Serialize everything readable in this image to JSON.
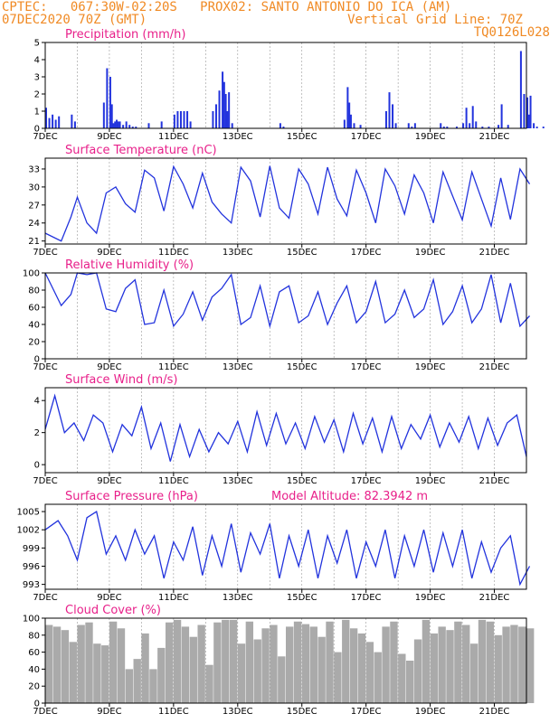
{
  "header": {
    "line1": "CPTEC:   067:30W-02:20S   PROX02: SANTO ANTONIO DO ICA (AM)",
    "line2_left": "07DEC2020 70Z (GMT)",
    "line2_right": "Vertical Grid Line: 70Z",
    "line3_right": "TQ0126L028"
  },
  "x_ticks": [
    "7DEC",
    "9DEC",
    "11DEC",
    "13DEC",
    "15DEC",
    "17DEC",
    "19DEC",
    "21DEC"
  ],
  "colors": {
    "line": "#2233dd",
    "bar": "#2233dd",
    "cloud": "#aaaaaa",
    "title": "#e8208a",
    "header": "#f08a24"
  },
  "chart_data": [
    {
      "type": "bar",
      "title": "Precipitation (mm/h)",
      "ylim": [
        0,
        5
      ],
      "yticks": [
        0,
        1,
        2,
        3,
        4,
        5
      ],
      "x_days": [
        0.0,
        0.1,
        0.2,
        0.3,
        0.4,
        0.8,
        0.9,
        1.8,
        1.9,
        2.0,
        2.05,
        2.1,
        2.15,
        2.2,
        2.25,
        2.3,
        2.4,
        2.5,
        2.6,
        2.7,
        2.8,
        3.2,
        3.6,
        4.0,
        4.1,
        4.2,
        4.3,
        4.4,
        4.5,
        5.2,
        5.3,
        5.4,
        5.5,
        5.55,
        5.6,
        5.65,
        5.7,
        5.8,
        7.3,
        7.4,
        9.3,
        9.4,
        9.45,
        9.5,
        9.6,
        9.8,
        10.6,
        10.7,
        10.8,
        10.9,
        11.3,
        11.4,
        11.5,
        12.3,
        12.4,
        12.5,
        12.8,
        13.0,
        13.1,
        13.2,
        13.3,
        13.4,
        13.6,
        13.8,
        14.1,
        14.2,
        14.4,
        14.8,
        14.9,
        15.0,
        15.05,
        15.1,
        15.2,
        15.3,
        15.5
      ],
      "values": [
        1.2,
        0.6,
        0.8,
        0.5,
        0.7,
        0.8,
        0.4,
        1.5,
        3.5,
        3.0,
        1.4,
        0.3,
        0.4,
        0.5,
        0.4,
        0.4,
        0.2,
        0.4,
        0.2,
        0.1,
        0.1,
        0.3,
        0.4,
        0.8,
        1.0,
        1.0,
        1.0,
        1.0,
        0.4,
        1.0,
        1.4,
        2.2,
        3.3,
        2.7,
        2.0,
        1.0,
        2.1,
        0.3,
        0.3,
        0.1,
        0.5,
        2.4,
        1.5,
        0.8,
        0.3,
        0.2,
        1.0,
        2.1,
        1.4,
        0.3,
        0.3,
        0.1,
        0.3,
        0.3,
        0.1,
        0.1,
        0.1,
        0.3,
        1.2,
        0.3,
        1.3,
        0.4,
        0.1,
        0.1,
        0.2,
        1.4,
        0.2,
        4.5,
        2.0,
        1.8,
        0.8,
        1.9,
        0.3,
        0.1,
        0.1
      ]
    },
    {
      "type": "line",
      "title": "Surface Temperature (nC)",
      "ylim": [
        20.5,
        34.8
      ],
      "yticks": [
        21,
        24,
        27,
        30,
        33
      ],
      "x_days": [
        0,
        0.5,
        0.8,
        1.0,
        1.3,
        1.6,
        1.9,
        2.2,
        2.5,
        2.8,
        3.1,
        3.4,
        3.7,
        4.0,
        4.3,
        4.6,
        4.9,
        5.2,
        5.5,
        5.8,
        6.1,
        6.4,
        6.7,
        7.0,
        7.3,
        7.6,
        7.9,
        8.2,
        8.5,
        8.8,
        9.1,
        9.4,
        9.7,
        10.0,
        10.3,
        10.6,
        10.9,
        11.2,
        11.5,
        11.8,
        12.1,
        12.4,
        12.7,
        13.0,
        13.3,
        13.6,
        13.9,
        14.2,
        14.5,
        14.8,
        15.1
      ],
      "values": [
        22.3,
        21.0,
        25.0,
        28.3,
        24.0,
        22.3,
        29.0,
        30.0,
        27.2,
        25.8,
        32.8,
        31.5,
        26.0,
        33.4,
        30.5,
        26.5,
        32.3,
        27.5,
        25.5,
        24.0,
        33.3,
        31.0,
        25.0,
        33.5,
        26.5,
        24.8,
        33.0,
        30.5,
        25.5,
        33.3,
        28.0,
        25.2,
        32.8,
        29.0,
        24.0,
        33.0,
        30.2,
        25.5,
        32.0,
        29.0,
        24.0,
        32.5,
        28.5,
        24.5,
        32.5,
        28.0,
        23.5,
        31.5,
        24.6,
        33.0,
        30.5
      ]
    },
    {
      "type": "line",
      "title": "Relative Humidity (%)",
      "ylim": [
        0,
        100
      ],
      "yticks": [
        0,
        20,
        40,
        60,
        80,
        100
      ],
      "x_days": [
        0,
        0.5,
        0.8,
        1.0,
        1.3,
        1.6,
        1.9,
        2.2,
        2.5,
        2.8,
        3.1,
        3.4,
        3.7,
        4.0,
        4.3,
        4.6,
        4.9,
        5.2,
        5.5,
        5.8,
        6.1,
        6.4,
        6.7,
        7.0,
        7.3,
        7.6,
        7.9,
        8.2,
        8.5,
        8.8,
        9.1,
        9.4,
        9.7,
        10.0,
        10.3,
        10.6,
        10.9,
        11.2,
        11.5,
        11.8,
        12.1,
        12.4,
        12.7,
        13.0,
        13.3,
        13.6,
        13.9,
        14.2,
        14.5,
        14.8,
        15.1
      ],
      "values": [
        100,
        62,
        75,
        100,
        98,
        100,
        58,
        55,
        82,
        92,
        40,
        42,
        80,
        38,
        52,
        78,
        45,
        72,
        82,
        98,
        40,
        48,
        85,
        38,
        78,
        85,
        42,
        50,
        78,
        40,
        65,
        85,
        42,
        55,
        90,
        42,
        52,
        80,
        48,
        58,
        92,
        40,
        55,
        85,
        42,
        58,
        98,
        42,
        88,
        38,
        50
      ]
    },
    {
      "type": "line",
      "title": "Surface Wind (m/s)",
      "ylim": [
        -0.5,
        4.8
      ],
      "yticks": [
        0,
        2,
        4
      ],
      "x_days": [
        0,
        0.3,
        0.6,
        0.9,
        1.2,
        1.5,
        1.8,
        2.1,
        2.4,
        2.7,
        3.0,
        3.3,
        3.6,
        3.9,
        4.2,
        4.5,
        4.8,
        5.1,
        5.4,
        5.7,
        6.0,
        6.3,
        6.6,
        6.9,
        7.2,
        7.5,
        7.8,
        8.1,
        8.4,
        8.7,
        9.0,
        9.3,
        9.6,
        9.9,
        10.2,
        10.5,
        10.8,
        11.1,
        11.4,
        11.7,
        12.0,
        12.3,
        12.6,
        12.9,
        13.2,
        13.5,
        13.8,
        14.1,
        14.4,
        14.7,
        15.0
      ],
      "values": [
        2.2,
        4.3,
        2.0,
        2.6,
        1.5,
        3.1,
        2.6,
        0.8,
        2.5,
        1.8,
        3.6,
        1.0,
        2.6,
        0.2,
        2.5,
        0.5,
        2.2,
        0.8,
        2.0,
        1.3,
        2.7,
        0.8,
        3.3,
        1.2,
        3.2,
        1.3,
        2.6,
        1.0,
        3.0,
        1.4,
        2.8,
        0.8,
        3.2,
        1.3,
        2.9,
        0.8,
        3.0,
        1.0,
        2.5,
        1.6,
        3.1,
        1.1,
        2.6,
        1.4,
        3.0,
        1.0,
        2.9,
        1.2,
        2.6,
        3.1,
        0.5
      ]
    },
    {
      "type": "line",
      "title": "Surface Pressure (hPa)",
      "annotation": "Model Altitude: 82.3942 m",
      "ylim": [
        992.2,
        1006.2
      ],
      "yticks": [
        993,
        996,
        999,
        1002,
        1005
      ],
      "yticklabels": [
        "993",
        "996",
        "999",
        "1002",
        "1005"
      ],
      "x_days": [
        0,
        0.4,
        0.7,
        1.0,
        1.3,
        1.6,
        1.9,
        2.2,
        2.5,
        2.8,
        3.1,
        3.4,
        3.7,
        4.0,
        4.3,
        4.6,
        4.9,
        5.2,
        5.5,
        5.8,
        6.1,
        6.4,
        6.7,
        7.0,
        7.3,
        7.6,
        7.9,
        8.2,
        8.5,
        8.8,
        9.1,
        9.4,
        9.7,
        10.0,
        10.3,
        10.6,
        10.9,
        11.2,
        11.5,
        11.8,
        12.1,
        12.4,
        12.7,
        13.0,
        13.3,
        13.6,
        13.9,
        14.2,
        14.5,
        14.8,
        15.1
      ],
      "values": [
        1002.0,
        1003.5,
        1001.0,
        997.0,
        1004.0,
        1005.0,
        998.0,
        1001.0,
        997.0,
        1002.0,
        998.0,
        1001.0,
        994.0,
        1000.0,
        997.0,
        1002.5,
        994.5,
        1001.0,
        996.0,
        1003.0,
        995.0,
        1001.5,
        998.0,
        1003.0,
        994.0,
        1001.0,
        996.0,
        1002.0,
        994.0,
        1001.0,
        996.5,
        1002.0,
        994.0,
        1000.0,
        996.0,
        1002.0,
        994.0,
        1001.0,
        996.0,
        1002.0,
        995.0,
        1001.5,
        996.0,
        1002.0,
        994.0,
        1000.0,
        995.0,
        999.0,
        1001.0,
        993.0,
        996.0
      ]
    },
    {
      "type": "bar",
      "title": "Cloud Cover (%)",
      "ylim": [
        0,
        100
      ],
      "yticks": [
        0,
        20,
        40,
        60,
        80,
        100
      ],
      "x_days": [
        0,
        0.25,
        0.5,
        0.75,
        1.0,
        1.25,
        1.5,
        1.75,
        2.0,
        2.25,
        2.5,
        2.75,
        3.0,
        3.25,
        3.5,
        3.75,
        4.0,
        4.25,
        4.5,
        4.75,
        5.0,
        5.25,
        5.5,
        5.75,
        6.0,
        6.25,
        6.5,
        6.75,
        7.0,
        7.25,
        7.5,
        7.75,
        8.0,
        8.25,
        8.5,
        8.75,
        9.0,
        9.25,
        9.5,
        9.75,
        10.0,
        10.25,
        10.5,
        10.75,
        11.0,
        11.25,
        11.5,
        11.75,
        12.0,
        12.25,
        12.5,
        12.75,
        13.0,
        13.25,
        13.5,
        13.75,
        14.0,
        14.25,
        14.5,
        14.75,
        15.0
      ],
      "values": [
        92,
        90,
        86,
        72,
        92,
        95,
        70,
        68,
        96,
        88,
        40,
        52,
        82,
        40,
        65,
        95,
        98,
        90,
        78,
        92,
        45,
        95,
        98,
        98,
        70,
        96,
        75,
        88,
        92,
        55,
        90,
        96,
        93,
        90,
        78,
        96,
        60,
        98,
        88,
        82,
        72,
        60,
        90,
        96,
        58,
        50,
        75,
        98,
        82,
        90,
        86,
        96,
        92,
        70,
        98,
        96,
        80,
        90,
        92,
        90,
        88
      ]
    }
  ]
}
